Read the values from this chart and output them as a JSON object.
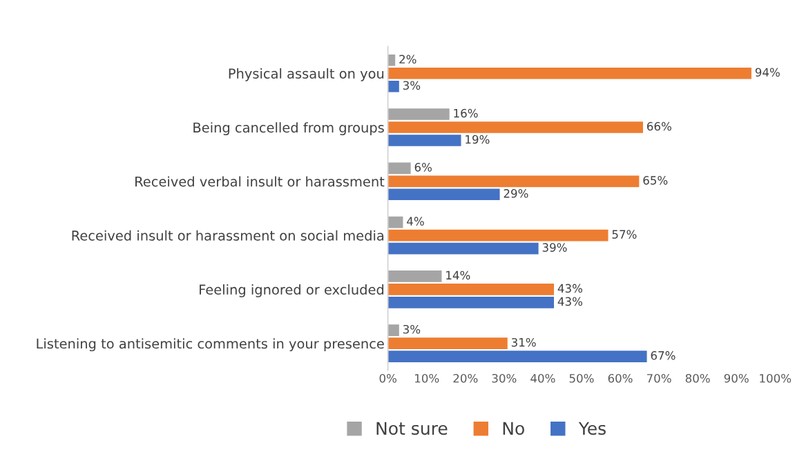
{
  "chart_data": {
    "type": "bar",
    "orientation": "horizontal",
    "categories": [
      "Physical assault on you",
      "Being cancelled from groups",
      "Received verbal insult or harassment",
      "Received insult or harassment on social media",
      "Feeling ignored or excluded",
      "Listening to antisemitic comments in your presence"
    ],
    "series": [
      {
        "name": "Not sure",
        "color": "#a5a5a5",
        "values": [
          2,
          16,
          6,
          4,
          14,
          3
        ],
        "value_labels": [
          "2%",
          "16%",
          "6%",
          "4%",
          "14%",
          "3%"
        ]
      },
      {
        "name": "No",
        "color": "#ed7d31",
        "values": [
          94,
          66,
          65,
          57,
          43,
          31
        ],
        "value_labels": [
          "94%",
          "66%",
          "65%",
          "57%",
          "43%",
          "31%"
        ]
      },
      {
        "name": "Yes",
        "color": "#4472c4",
        "values": [
          3,
          19,
          29,
          39,
          43,
          67
        ],
        "value_labels": [
          "3%",
          "19%",
          "29%",
          "39%",
          "43%",
          "67%"
        ]
      }
    ],
    "xlim": [
      0,
      100
    ],
    "xticks": [
      {
        "value": 0,
        "label": "0%"
      },
      {
        "value": 10,
        "label": "10%"
      },
      {
        "value": 20,
        "label": "20%"
      },
      {
        "value": 30,
        "label": "30%"
      },
      {
        "value": 40,
        "label": "40%"
      },
      {
        "value": 50,
        "label": "50%"
      },
      {
        "value": 60,
        "label": "60%"
      },
      {
        "value": 70,
        "label": "70%"
      },
      {
        "value": 80,
        "label": "80%"
      },
      {
        "value": 90,
        "label": "90%"
      },
      {
        "value": 100,
        "label": "100%"
      }
    ],
    "grid": false,
    "legend": "bottom"
  }
}
